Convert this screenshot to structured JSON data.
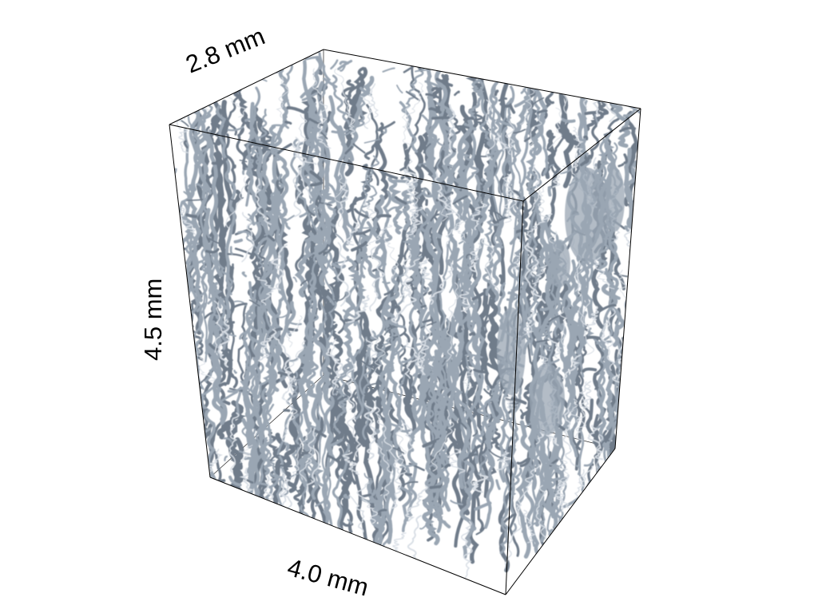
{
  "labels": {
    "depth": "2.8 mm",
    "height": "4.5 mm",
    "width": "4.0 mm"
  },
  "colors": {
    "background": "#ffffff",
    "strut": "#9aa6b3",
    "strut_shade": "#6f7c8a",
    "strut_highlight": "#d8dee5",
    "box_edge": "#000000"
  }
}
